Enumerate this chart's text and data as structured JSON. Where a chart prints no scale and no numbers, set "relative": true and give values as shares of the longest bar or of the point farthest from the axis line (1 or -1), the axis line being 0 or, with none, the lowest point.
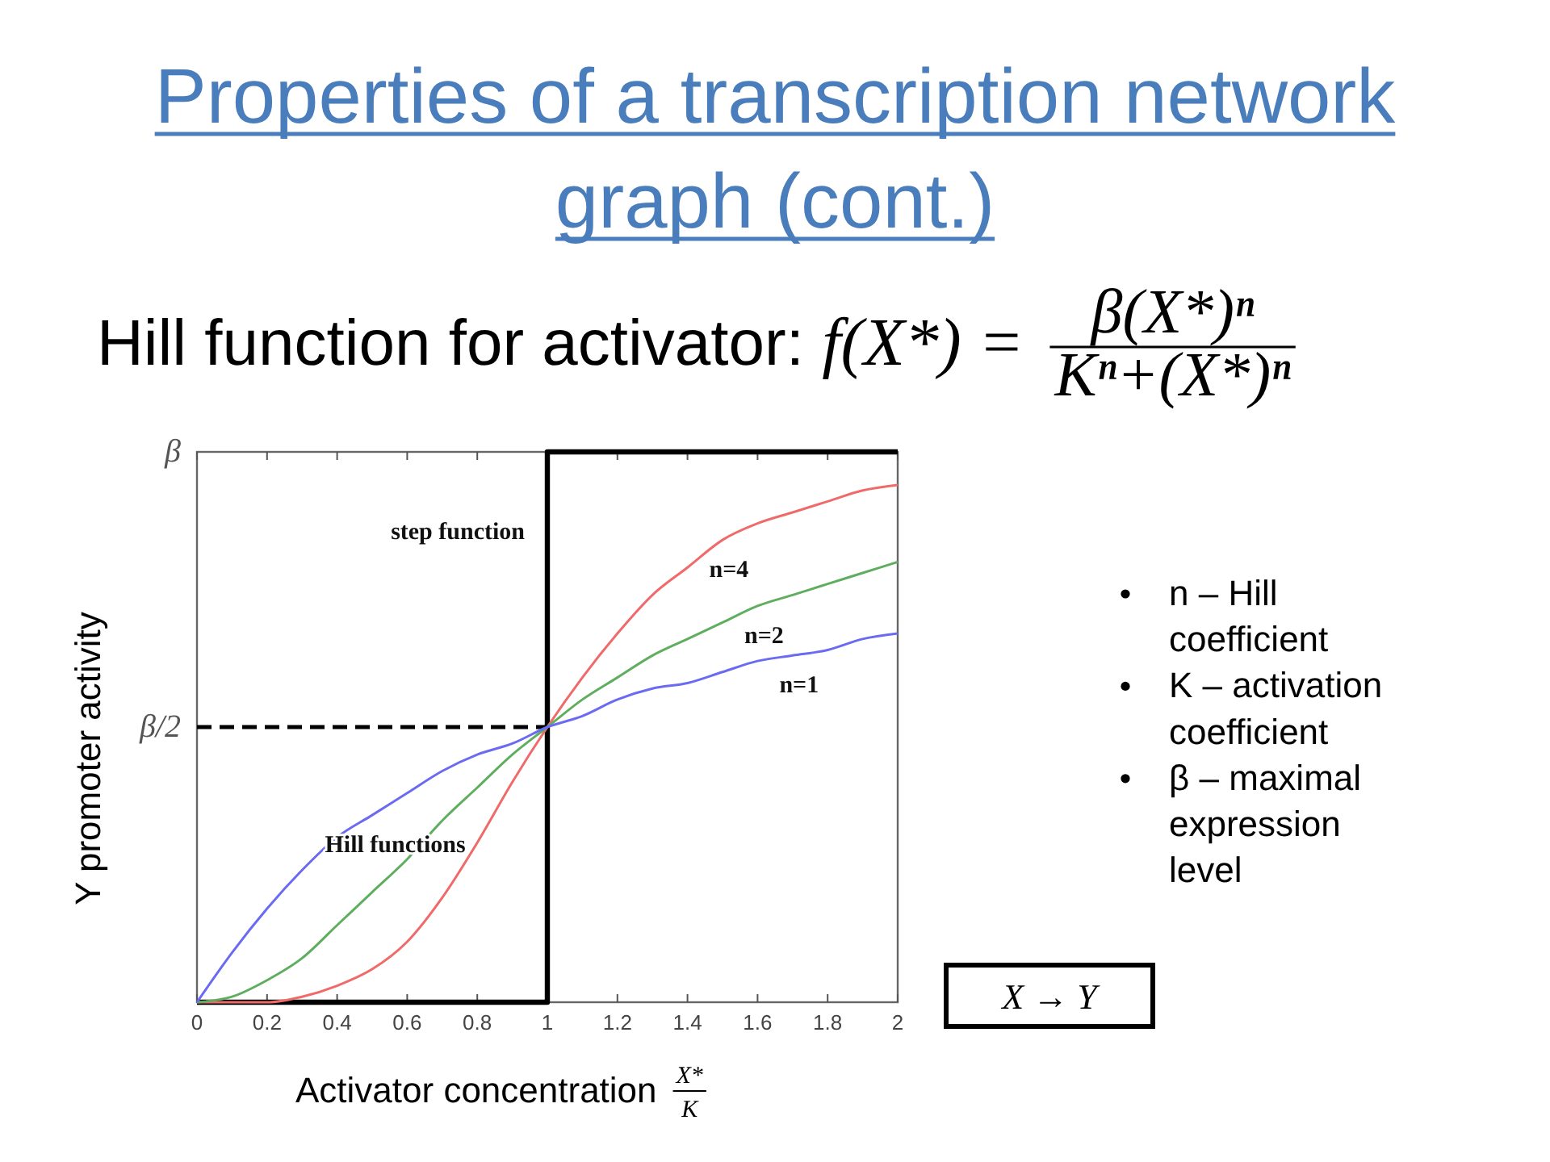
{
  "chart_data": {
    "type": "line",
    "relative": true,
    "title": "Properties of a transcription network graph (cont.)",
    "subtitle": "Hill function for activator: f(X*) = β(X*)ⁿ Kⁿ+(X*)ⁿ",
    "xlabel": "Activator concentration X* K",
    "ylabel": "Y promoter activity",
    "x": [
      0,
      0.1,
      0.2,
      0.3,
      0.4,
      0.5,
      0.6,
      0.7,
      0.8,
      0.9,
      1,
      1.1,
      1.2,
      1.3,
      1.4,
      1.5,
      1.6,
      1.7,
      1.8,
      1.9,
      2
    ],
    "series": [
      {
        "name": "step function",
        "type": "step",
        "color": "#000000",
        "x": [
          0,
          1,
          2
        ],
        "values": [
          0,
          1,
          1
        ]
      },
      {
        "type": "line",
        "color": "#000000",
        "line_style": "dashed",
        "x": [
          0,
          1
        ],
        "values": [
          0.5,
          0.5
        ]
      },
      {
        "name": "n=4",
        "color": "#f06a6a",
        "values": [
          0,
          0,
          0,
          0.01,
          0.03,
          0.06,
          0.11,
          0.19,
          0.29,
          0.4,
          0.5,
          0.59,
          0.67,
          0.74,
          0.79,
          0.84,
          0.87,
          0.89,
          0.91,
          0.93,
          0.94
        ]
      },
      {
        "name": "n=2",
        "color": "#5fae5f",
        "values": [
          0,
          0.01,
          0.04,
          0.08,
          0.14,
          0.2,
          0.26,
          0.33,
          0.39,
          0.45,
          0.5,
          0.55,
          0.59,
          0.63,
          0.66,
          0.69,
          0.72,
          0.74,
          0.76,
          0.78,
          0.8
        ]
      },
      {
        "name": "n=1",
        "color": "#6a6af2",
        "values": [
          0,
          0.09,
          0.17,
          0.24,
          0.3,
          0.34,
          0.38,
          0.42,
          0.45,
          0.47,
          0.5,
          0.52,
          0.55,
          0.57,
          0.58,
          0.6,
          0.62,
          0.63,
          0.64,
          0.66,
          0.67
        ]
      }
    ],
    "xlim": [
      0,
      2
    ],
    "xticks": [
      0,
      0.2,
      0.4,
      0.6,
      0.8,
      1,
      1.2,
      1.4,
      1.6,
      1.8,
      2
    ],
    "annotations": [
      "β",
      "β/2",
      "Hill functions",
      "n – Hill coefficient",
      "K – activation coefficient",
      "β – maximal expression level",
      "X → Y"
    ]
  }
}
